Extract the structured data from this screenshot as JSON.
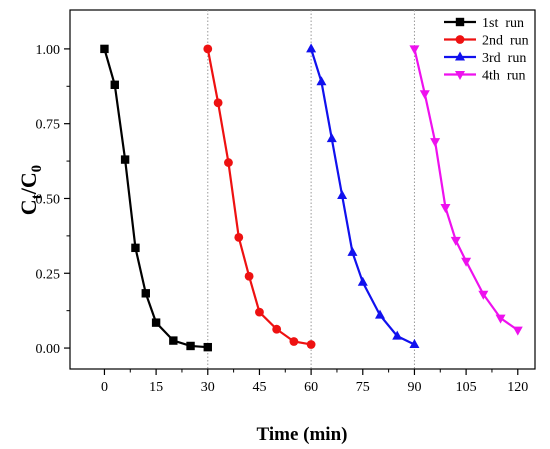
{
  "chart_data": {
    "type": "line",
    "xlabel": "Time (min)",
    "ylabel_main": "C",
    "ylabel_sub1": "t",
    "ylabel_sep": "/C",
    "ylabel_sub2": "0",
    "xlim": [
      -10,
      125
    ],
    "ylim": [
      -0.07,
      1.13
    ],
    "x_ticks": [
      0,
      15,
      30,
      45,
      60,
      75,
      90,
      105,
      120
    ],
    "x_tick_labels": [
      "0",
      "15",
      "30",
      "45",
      "60",
      "75",
      "90",
      "105",
      "120"
    ],
    "y_ticks": [
      0,
      0.25,
      0.5,
      0.75,
      1.0
    ],
    "y_tick_labels": [
      "0.00",
      "0.25",
      "0.50",
      "0.75",
      "1.00"
    ],
    "vertical_dotted_lines": [
      30,
      60,
      90
    ],
    "grid": false,
    "legend_position": "top-right",
    "series": [
      {
        "name": "1st  run",
        "color": "#000000",
        "marker": "square",
        "x": [
          0,
          3,
          6,
          9,
          12,
          15,
          20,
          25,
          30
        ],
        "y": [
          1.0,
          0.88,
          0.63,
          0.335,
          0.183,
          0.085,
          0.025,
          0.007,
          0.003
        ]
      },
      {
        "name": "2nd  run",
        "color": "#ee1111",
        "marker": "circle",
        "x": [
          30,
          33,
          36,
          39,
          42,
          45,
          50,
          55,
          60
        ],
        "y": [
          1.0,
          0.82,
          0.62,
          0.37,
          0.24,
          0.12,
          0.063,
          0.022,
          0.012
        ]
      },
      {
        "name": "3rd  run",
        "color": "#1111ee",
        "marker": "triangle-up",
        "x": [
          60,
          63,
          66,
          69,
          72,
          75,
          80,
          85,
          90
        ],
        "y": [
          1.0,
          0.89,
          0.7,
          0.51,
          0.32,
          0.22,
          0.11,
          0.04,
          0.012
        ]
      },
      {
        "name": "4th  run",
        "color": "#ee11ee",
        "marker": "triangle-down",
        "x": [
          90,
          93,
          96,
          99,
          102,
          105,
          110,
          115,
          120
        ],
        "y": [
          1.0,
          0.85,
          0.69,
          0.47,
          0.36,
          0.29,
          0.18,
          0.1,
          0.06
        ]
      }
    ]
  }
}
